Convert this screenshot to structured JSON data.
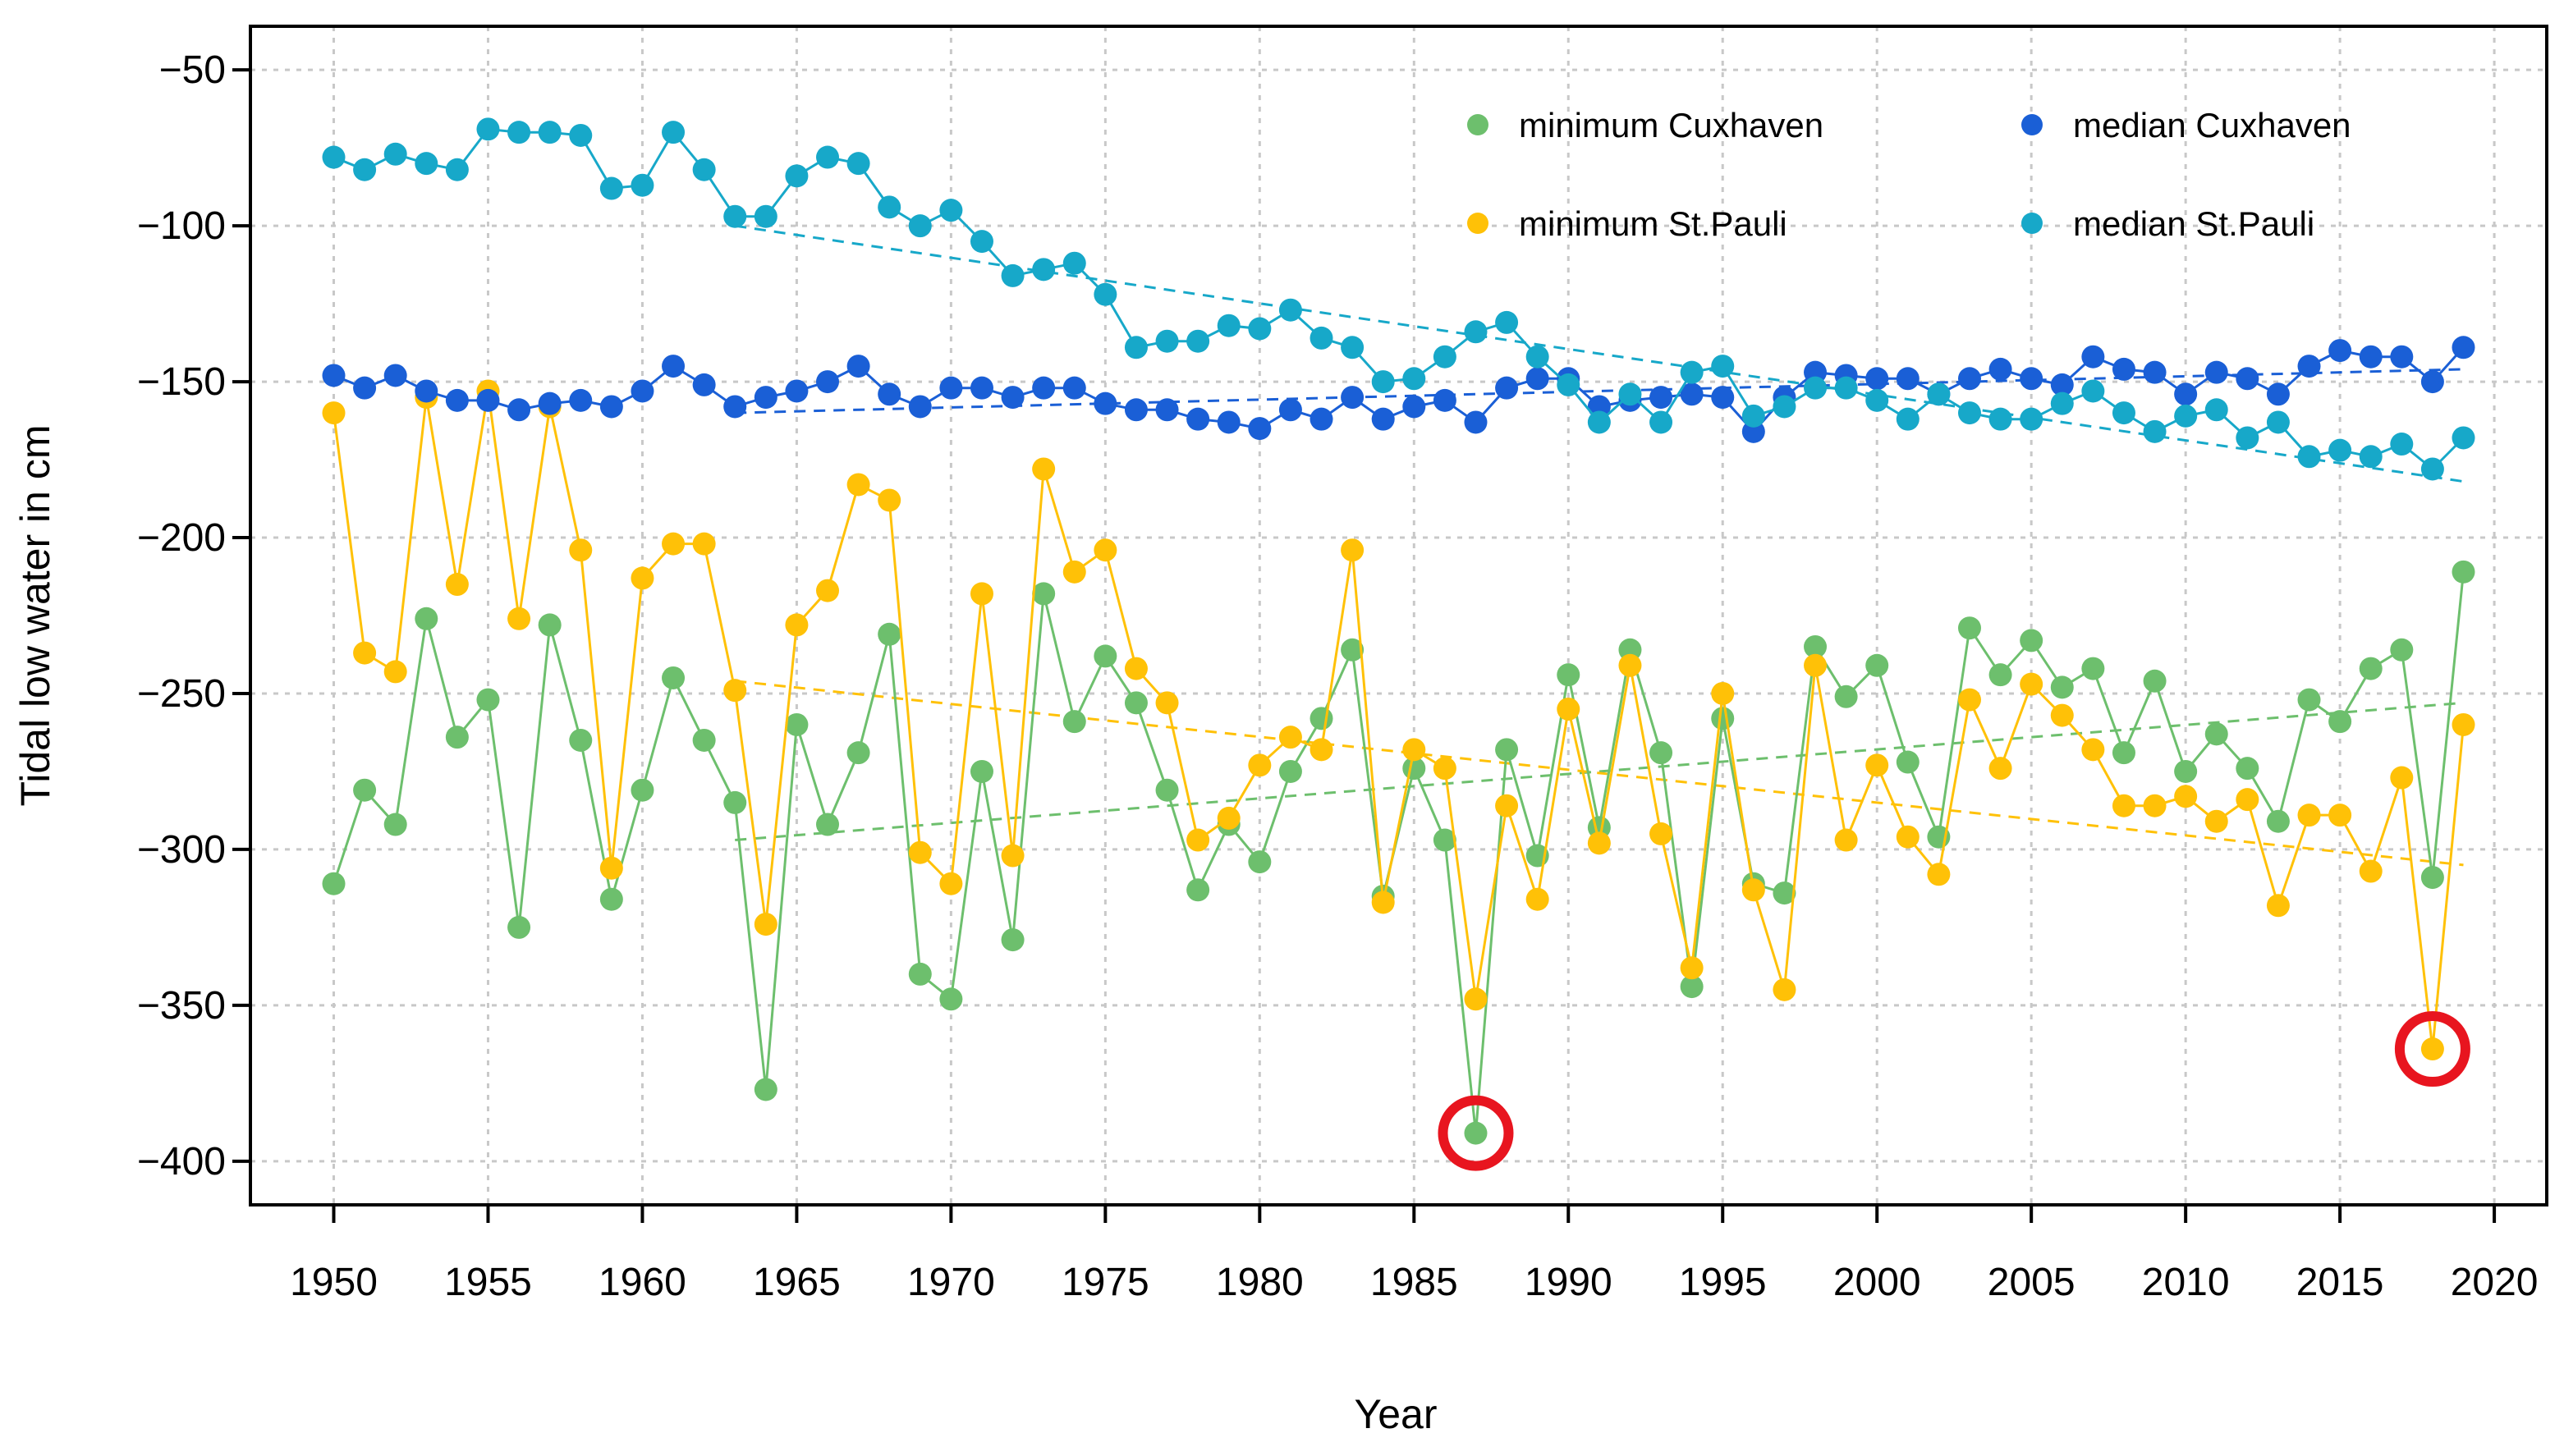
{
  "chart_data": {
    "type": "line",
    "title": "",
    "xlabel": "Year",
    "ylabel": "Tidal low water in cm",
    "xlim": [
      1947.3,
      2021.7
    ],
    "ylim": [
      -414,
      -36
    ],
    "xticks": [
      1950,
      1955,
      1960,
      1965,
      1970,
      1975,
      1980,
      1985,
      1990,
      1995,
      2000,
      2005,
      2010,
      2015,
      2020
    ],
    "xtick_labels": [
      "1950",
      "1955",
      "1960",
      "1965",
      "1970",
      "1975",
      "1980",
      "1985",
      "1990",
      "1995",
      "2000",
      "2005",
      "2010",
      "2015",
      "2020"
    ],
    "yticks": [
      -400,
      -350,
      -300,
      -250,
      -200,
      -150,
      -100,
      -50
    ],
    "ytick_labels": [
      "−400",
      "−350",
      "−300",
      "−250",
      "−200",
      "−150",
      "−100",
      "−50"
    ],
    "grid": true,
    "legend_position": "top-right",
    "x": [
      1950,
      1951,
      1952,
      1953,
      1954,
      1955,
      1956,
      1957,
      1958,
      1959,
      1960,
      1961,
      1962,
      1963,
      1964,
      1965,
      1966,
      1967,
      1968,
      1969,
      1970,
      1971,
      1972,
      1973,
      1974,
      1975,
      1976,
      1977,
      1978,
      1979,
      1980,
      1981,
      1982,
      1983,
      1984,
      1985,
      1986,
      1987,
      1988,
      1989,
      1990,
      1991,
      1992,
      1993,
      1994,
      1995,
      1996,
      1997,
      1998,
      1999,
      2000,
      2001,
      2002,
      2003,
      2004,
      2005,
      2006,
      2007,
      2008,
      2009,
      2010,
      2011,
      2012,
      2013,
      2014,
      2015,
      2016,
      2017,
      2018,
      2019
    ],
    "series": [
      {
        "name": "minimum Cuxhaven",
        "color": "#6dbf6d",
        "values": [
          -311,
          -281,
          -292,
          -226,
          -264,
          -252,
          -325,
          -228,
          -265,
          -316,
          -281,
          -245,
          -265,
          -285,
          -377,
          -260,
          -292,
          -269,
          -231,
          -340,
          -348,
          -275,
          -329,
          -218,
          -259,
          -238,
          -253,
          -281,
          -313,
          -292,
          -304,
          -275,
          -258,
          -236,
          -315,
          -274,
          -297,
          -391,
          -268,
          -302,
          -244,
          -293,
          -236,
          -269,
          -344,
          -258,
          -311,
          -314,
          -235,
          -251,
          -241,
          -272,
          -296,
          -229,
          -244,
          -233,
          -248,
          -242,
          -269,
          -246,
          -275,
          -263,
          -274,
          -291,
          -252,
          -259,
          -242,
          -236,
          -309,
          -211
        ],
        "trend": {
          "x": [
            1963,
            2019
          ],
          "y": [
            -297,
            -253
          ]
        }
      },
      {
        "name": "minimum St.Pauli",
        "color": "#ffc107",
        "values": [
          -160,
          -237,
          -243,
          -155,
          -215,
          -153,
          -226,
          -158,
          -204,
          -306,
          -213,
          -202,
          -202,
          -249,
          -324,
          -228,
          -217,
          -183,
          -188,
          -301,
          -311,
          -218,
          -302,
          -178,
          -211,
          -204,
          -242,
          -253,
          -297,
          -290,
          -273,
          -264,
          -268,
          -204,
          -317,
          -268,
          -274,
          -348,
          -286,
          -316,
          -255,
          -298,
          -241,
          -295,
          -338,
          -250,
          -313,
          -345,
          -241,
          -297,
          -273,
          -296,
          -308,
          -252,
          -274,
          -247,
          -257,
          -268,
          -286,
          -286,
          -283,
          -291,
          -284,
          -318,
          -289,
          -289,
          -307,
          -277,
          -364,
          -260
        ],
        "trend": {
          "x": [
            1963,
            2019
          ],
          "y": [
            -246,
            -305
          ]
        }
      },
      {
        "name": "median Cuxhaven",
        "color": "#1a5fd6",
        "values": [
          -148,
          -152,
          -148,
          -153,
          -156,
          -156,
          -159,
          -157,
          -156,
          -158,
          -153,
          -145,
          -151,
          -158,
          -155,
          -153,
          -150,
          -145,
          -154,
          -158,
          -152,
          -152,
          -155,
          -152,
          -152,
          -157,
          -159,
          -159,
          -162,
          -163,
          -165,
          -159,
          -162,
          -155,
          -162,
          -158,
          -156,
          -163,
          -152,
          -149,
          -149,
          -158,
          -156,
          -155,
          -154,
          -155,
          -166,
          -155,
          -147,
          -148,
          -149,
          -149,
          -154,
          -149,
          -146,
          -149,
          -151,
          -142,
          -146,
          -147,
          -154,
          -147,
          -149,
          -154,
          -145,
          -140,
          -142,
          -142,
          -150,
          -139
        ],
        "trend": {
          "x": [
            1963,
            2019
          ],
          "y": [
            -160,
            -146
          ]
        }
      },
      {
        "name": "median St.Pauli",
        "color": "#17a8c9",
        "values": [
          -78,
          -82,
          -77,
          -80,
          -82,
          -69,
          -70,
          -70,
          -71,
          -88,
          -87,
          -70,
          -82,
          -97,
          -97,
          -84,
          -78,
          -80,
          -94,
          -100,
          -95,
          -105,
          -116,
          -114,
          -112,
          -122,
          -139,
          -137,
          -137,
          -132,
          -133,
          -127,
          -136,
          -139,
          -150,
          -149,
          -142,
          -134,
          -131,
          -142,
          -151,
          -163,
          -154,
          -163,
          -147,
          -145,
          -161,
          -158,
          -152,
          -152,
          -156,
          -162,
          -154,
          -160,
          -162,
          -162,
          -157,
          -153,
          -160,
          -166,
          -161,
          -159,
          -168,
          -163,
          -174,
          -172,
          -174,
          -170,
          -178,
          -168
        ],
        "trend": {
          "x": [
            1963,
            2019
          ],
          "y": [
            -100,
            -182
          ]
        }
      }
    ],
    "highlights": [
      {
        "series": "minimum Cuxhaven",
        "x": 1987,
        "y": -391
      },
      {
        "series": "minimum St.Pauli",
        "x": 2018,
        "y": -364
      }
    ],
    "highlight_color": "#e8151f"
  }
}
